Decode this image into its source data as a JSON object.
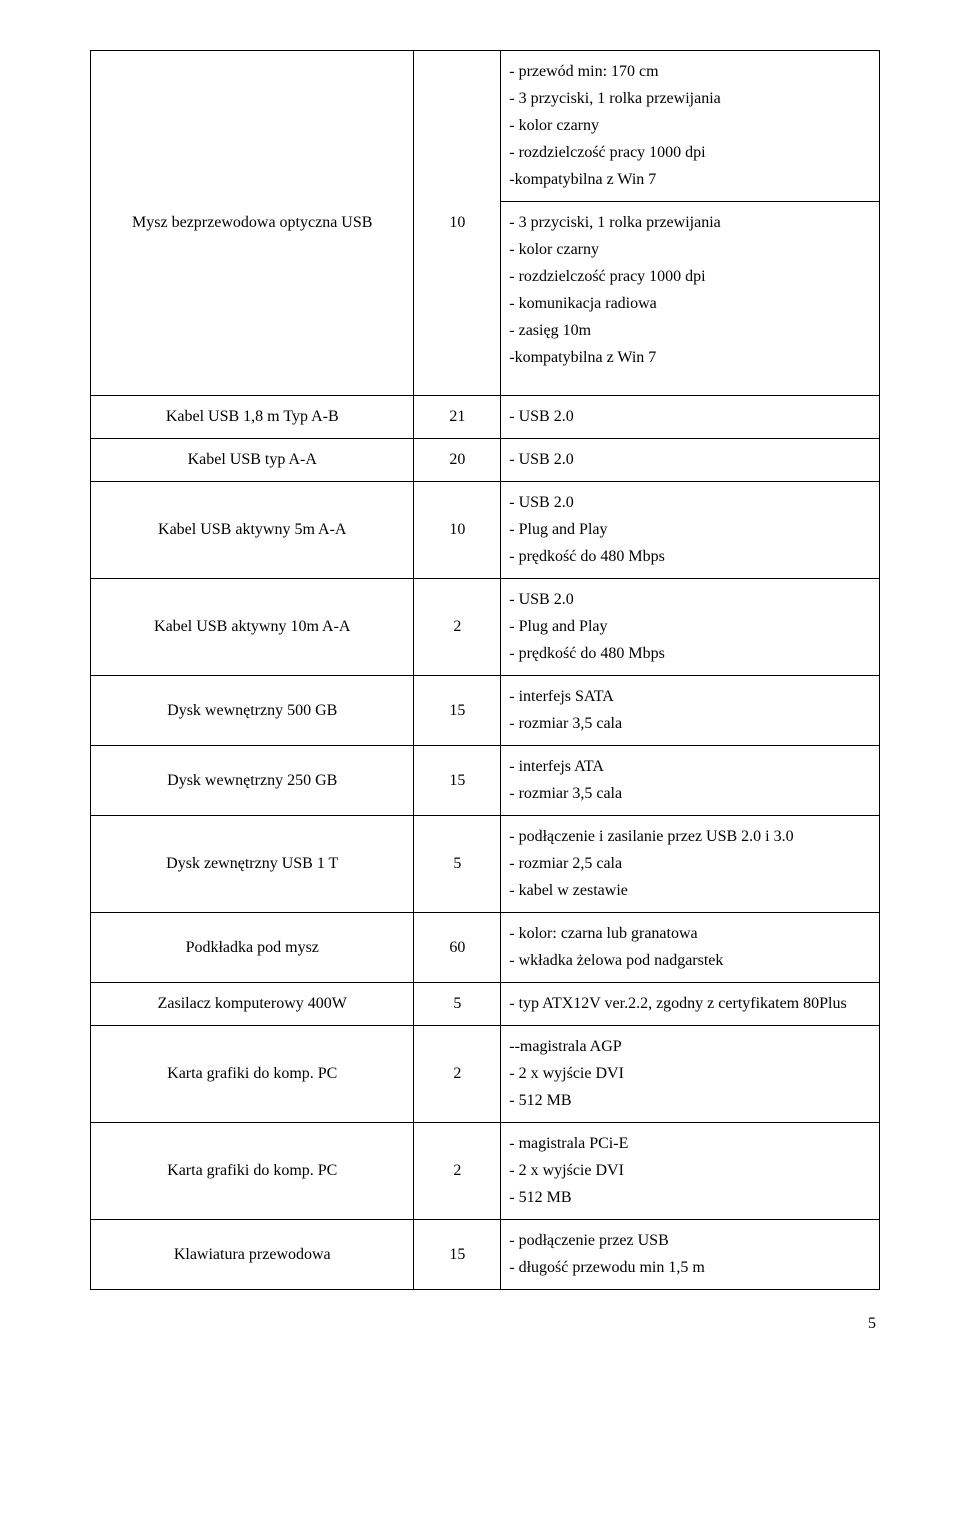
{
  "rows": [
    {
      "name": "",
      "qty": "",
      "spec": [
        "- przewód min: 170 cm",
        "- 3 przyciski, 1 rolka przewijania",
        "- kolor czarny",
        "- rozdzielczość pracy  1000 dpi",
        "-kompatybilna z Win 7"
      ],
      "merge_name_with_next": true
    },
    {
      "name": "Mysz bezprzewodowa optyczna USB",
      "qty": "10",
      "spec": [
        "- 3 przyciski, 1 rolka przewijania",
        "- kolor czarny",
        "- rozdzielczość pracy  1000 dpi",
        "- komunikacja radiowa",
        "- zasięg 10m",
        "-kompatybilna z Win 7"
      ]
    },
    {
      "name": "Kabel USB 1,8 m Typ A-B",
      "qty": "21",
      "spec": [
        "- USB 2.0"
      ]
    },
    {
      "name": "Kabel USB typ A-A",
      "qty": "20",
      "spec": [
        "- USB 2.0"
      ]
    },
    {
      "name": "Kabel USB aktywny 5m A-A",
      "qty": "10",
      "spec": [
        "- USB 2.0",
        "- Plug and Play",
        "- prędkość do 480 Mbps"
      ]
    },
    {
      "name": "Kabel USB aktywny 10m A-A",
      "qty": "2",
      "spec": [
        "- USB 2.0",
        "- Plug and Play",
        "- prędkość do 480 Mbps"
      ]
    },
    {
      "name": "Dysk wewnętrzny 500 GB",
      "qty": "15",
      "spec": [
        "- interfejs SATA",
        "- rozmiar 3,5 cala"
      ]
    },
    {
      "name": "Dysk wewnętrzny 250 GB",
      "qty": "15",
      "spec": [
        "- interfejs ATA",
        "- rozmiar 3,5 cala"
      ]
    },
    {
      "name": "Dysk zewnętrzny USB 1 T",
      "qty": "5",
      "spec": [
        "- podłączenie i zasilanie przez USB 2.0 i 3.0",
        "- rozmiar 2,5 cala",
        "- kabel w zestawie"
      ]
    },
    {
      "name": "Podkładka pod mysz",
      "qty": "60",
      "spec": [
        "- kolor: czarna lub granatowa",
        "- wkładka żelowa pod nadgarstek"
      ]
    },
    {
      "name": "Zasilacz komputerowy 400W",
      "qty": "5",
      "spec": [
        "- typ ATX12V ver.2.2, zgodny z certyfikatem 80Plus"
      ]
    },
    {
      "name": "Karta grafiki do komp. PC",
      "qty": "2",
      "spec": [
        "--magistrala AGP",
        "- 2 x wyjście DVI",
        "- 512 MB"
      ]
    },
    {
      "name": "Karta grafiki do komp. PC",
      "qty": "2",
      "spec": [
        "- magistrala PCi-E",
        "- 2 x wyjście DVI",
        "- 512 MB"
      ]
    },
    {
      "name": "Klawiatura przewodowa",
      "qty": "15",
      "spec": [
        "- podłączenie przez USB",
        "- długość przewodu min 1,5 m"
      ]
    }
  ],
  "page_number": "5"
}
